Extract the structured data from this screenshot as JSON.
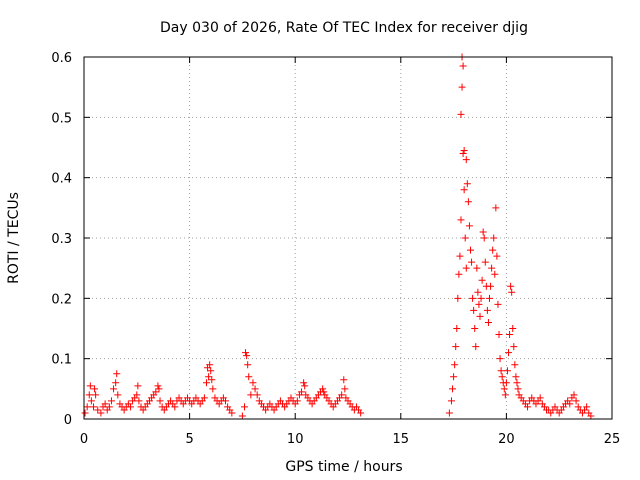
{
  "chart_data": {
    "type": "scatter",
    "title": "Day 030 of 2026, Rate Of TEC Index for receiver djig",
    "xlabel": "GPS time / hours",
    "ylabel": "ROTI / TECUs",
    "xlim": [
      0,
      25
    ],
    "ylim": [
      0,
      0.6
    ],
    "x_ticks": [
      0,
      5,
      10,
      15,
      20,
      25
    ],
    "x_tick_labels": [
      "0",
      "5",
      "10",
      "15",
      "20",
      "25"
    ],
    "y_ticks": [
      0,
      0.1,
      0.2,
      0.3,
      0.4,
      0.5,
      0.6
    ],
    "y_tick_labels": [
      "0",
      "0.1",
      "0.2",
      "0.3",
      "0.4",
      "0.5",
      "0.6"
    ],
    "grid": true,
    "marker": "plus",
    "series": [
      {
        "name": "ROTI",
        "color": "#ff0000",
        "points": [
          [
            0.05,
            0.01
          ],
          [
            0.15,
            0.02
          ],
          [
            0.25,
            0.04
          ],
          [
            0.3,
            0.055
          ],
          [
            0.35,
            0.03
          ],
          [
            0.45,
            0.02
          ],
          [
            0.5,
            0.05
          ],
          [
            0.55,
            0.04
          ],
          [
            0.65,
            0.015
          ],
          [
            0.8,
            0.01
          ],
          [
            0.9,
            0.02
          ],
          [
            1.0,
            0.025
          ],
          [
            1.1,
            0.015
          ],
          [
            1.2,
            0.02
          ],
          [
            1.3,
            0.03
          ],
          [
            1.4,
            0.05
          ],
          [
            1.5,
            0.06
          ],
          [
            1.55,
            0.075
          ],
          [
            1.6,
            0.04
          ],
          [
            1.7,
            0.025
          ],
          [
            1.8,
            0.02
          ],
          [
            1.9,
            0.015
          ],
          [
            2.0,
            0.02
          ],
          [
            2.1,
            0.025
          ],
          [
            2.2,
            0.02
          ],
          [
            2.3,
            0.03
          ],
          [
            2.4,
            0.035
          ],
          [
            2.5,
            0.04
          ],
          [
            2.55,
            0.055
          ],
          [
            2.6,
            0.03
          ],
          [
            2.7,
            0.02
          ],
          [
            2.8,
            0.015
          ],
          [
            2.9,
            0.02
          ],
          [
            3.0,
            0.025
          ],
          [
            3.1,
            0.03
          ],
          [
            3.2,
            0.035
          ],
          [
            3.3,
            0.04
          ],
          [
            3.4,
            0.045
          ],
          [
            3.5,
            0.055
          ],
          [
            3.55,
            0.05
          ],
          [
            3.6,
            0.03
          ],
          [
            3.7,
            0.02
          ],
          [
            3.8,
            0.015
          ],
          [
            3.9,
            0.02
          ],
          [
            4.0,
            0.025
          ],
          [
            4.1,
            0.03
          ],
          [
            4.2,
            0.025
          ],
          [
            4.3,
            0.02
          ],
          [
            4.4,
            0.03
          ],
          [
            4.5,
            0.035
          ],
          [
            4.6,
            0.03
          ],
          [
            4.7,
            0.025
          ],
          [
            4.8,
            0.03
          ],
          [
            4.9,
            0.035
          ],
          [
            5.0,
            0.03
          ],
          [
            5.1,
            0.025
          ],
          [
            5.2,
            0.03
          ],
          [
            5.3,
            0.035
          ],
          [
            5.4,
            0.03
          ],
          [
            5.5,
            0.025
          ],
          [
            5.6,
            0.03
          ],
          [
            5.7,
            0.035
          ],
          [
            5.8,
            0.06
          ],
          [
            5.85,
            0.085
          ],
          [
            5.9,
            0.07
          ],
          [
            5.95,
            0.09
          ],
          [
            6.0,
            0.08
          ],
          [
            6.05,
            0.065
          ],
          [
            6.1,
            0.05
          ],
          [
            6.2,
            0.035
          ],
          [
            6.3,
            0.03
          ],
          [
            6.4,
            0.025
          ],
          [
            6.5,
            0.03
          ],
          [
            6.6,
            0.035
          ],
          [
            6.7,
            0.03
          ],
          [
            6.8,
            0.02
          ],
          [
            6.9,
            0.015
          ],
          [
            7.0,
            0.01
          ],
          [
            7.5,
            0.005
          ],
          [
            7.6,
            0.02
          ],
          [
            7.65,
            0.11
          ],
          [
            7.7,
            0.105
          ],
          [
            7.75,
            0.09
          ],
          [
            7.8,
            0.07
          ],
          [
            7.9,
            0.04
          ],
          [
            8.0,
            0.06
          ],
          [
            8.1,
            0.05
          ],
          [
            8.2,
            0.04
          ],
          [
            8.3,
            0.03
          ],
          [
            8.4,
            0.025
          ],
          [
            8.5,
            0.02
          ],
          [
            8.6,
            0.015
          ],
          [
            8.7,
            0.02
          ],
          [
            8.8,
            0.025
          ],
          [
            8.9,
            0.02
          ],
          [
            9.0,
            0.015
          ],
          [
            9.1,
            0.02
          ],
          [
            9.2,
            0.025
          ],
          [
            9.3,
            0.03
          ],
          [
            9.4,
            0.025
          ],
          [
            9.5,
            0.02
          ],
          [
            9.6,
            0.025
          ],
          [
            9.7,
            0.03
          ],
          [
            9.8,
            0.035
          ],
          [
            9.9,
            0.03
          ],
          [
            10.0,
            0.025
          ],
          [
            10.1,
            0.03
          ],
          [
            10.2,
            0.04
          ],
          [
            10.3,
            0.045
          ],
          [
            10.4,
            0.06
          ],
          [
            10.45,
            0.055
          ],
          [
            10.5,
            0.04
          ],
          [
            10.6,
            0.035
          ],
          [
            10.7,
            0.03
          ],
          [
            10.8,
            0.025
          ],
          [
            10.9,
            0.03
          ],
          [
            11.0,
            0.035
          ],
          [
            11.1,
            0.04
          ],
          [
            11.2,
            0.045
          ],
          [
            11.3,
            0.05
          ],
          [
            11.35,
            0.045
          ],
          [
            11.4,
            0.04
          ],
          [
            11.5,
            0.035
          ],
          [
            11.6,
            0.03
          ],
          [
            11.7,
            0.025
          ],
          [
            11.8,
            0.02
          ],
          [
            11.9,
            0.025
          ],
          [
            12.0,
            0.03
          ],
          [
            12.1,
            0.035
          ],
          [
            12.2,
            0.04
          ],
          [
            12.3,
            0.065
          ],
          [
            12.35,
            0.05
          ],
          [
            12.4,
            0.035
          ],
          [
            12.5,
            0.03
          ],
          [
            12.6,
            0.025
          ],
          [
            12.7,
            0.02
          ],
          [
            12.8,
            0.015
          ],
          [
            12.9,
            0.02
          ],
          [
            13.0,
            0.015
          ],
          [
            13.1,
            0.01
          ],
          [
            17.3,
            0.01
          ],
          [
            17.4,
            0.03
          ],
          [
            17.45,
            0.05
          ],
          [
            17.5,
            0.07
          ],
          [
            17.55,
            0.09
          ],
          [
            17.6,
            0.12
          ],
          [
            17.65,
            0.15
          ],
          [
            17.7,
            0.2
          ],
          [
            17.75,
            0.24
          ],
          [
            17.8,
            0.27
          ],
          [
            17.85,
            0.33
          ],
          [
            17.85,
            0.505
          ],
          [
            17.9,
            0.55
          ],
          [
            17.9,
            0.6
          ],
          [
            17.95,
            0.585
          ],
          [
            17.95,
            0.44
          ],
          [
            18.0,
            0.445
          ],
          [
            18.0,
            0.38
          ],
          [
            18.05,
            0.3
          ],
          [
            18.1,
            0.25
          ],
          [
            18.1,
            0.43
          ],
          [
            18.15,
            0.39
          ],
          [
            18.2,
            0.36
          ],
          [
            18.25,
            0.32
          ],
          [
            18.3,
            0.28
          ],
          [
            18.35,
            0.26
          ],
          [
            18.4,
            0.2
          ],
          [
            18.45,
            0.18
          ],
          [
            18.5,
            0.15
          ],
          [
            18.55,
            0.12
          ],
          [
            18.6,
            0.25
          ],
          [
            18.65,
            0.21
          ],
          [
            18.7,
            0.19
          ],
          [
            18.75,
            0.17
          ],
          [
            18.8,
            0.2
          ],
          [
            18.85,
            0.23
          ],
          [
            18.9,
            0.31
          ],
          [
            18.95,
            0.3
          ],
          [
            19.0,
            0.26
          ],
          [
            19.05,
            0.22
          ],
          [
            19.1,
            0.18
          ],
          [
            19.15,
            0.16
          ],
          [
            19.2,
            0.2
          ],
          [
            19.25,
            0.22
          ],
          [
            19.3,
            0.25
          ],
          [
            19.35,
            0.28
          ],
          [
            19.4,
            0.3
          ],
          [
            19.45,
            0.24
          ],
          [
            19.5,
            0.35
          ],
          [
            19.55,
            0.27
          ],
          [
            19.6,
            0.19
          ],
          [
            19.65,
            0.14
          ],
          [
            19.7,
            0.1
          ],
          [
            19.75,
            0.08
          ],
          [
            19.8,
            0.07
          ],
          [
            19.85,
            0.06
          ],
          [
            19.9,
            0.05
          ],
          [
            19.95,
            0.04
          ],
          [
            20.0,
            0.06
          ],
          [
            20.05,
            0.08
          ],
          [
            20.1,
            0.11
          ],
          [
            20.15,
            0.14
          ],
          [
            20.2,
            0.22
          ],
          [
            20.25,
            0.21
          ],
          [
            20.3,
            0.15
          ],
          [
            20.35,
            0.12
          ],
          [
            20.4,
            0.09
          ],
          [
            20.45,
            0.07
          ],
          [
            20.5,
            0.06
          ],
          [
            20.55,
            0.05
          ],
          [
            20.6,
            0.04
          ],
          [
            20.7,
            0.035
          ],
          [
            20.8,
            0.03
          ],
          [
            20.9,
            0.025
          ],
          [
            21.0,
            0.02
          ],
          [
            21.1,
            0.03
          ],
          [
            21.2,
            0.035
          ],
          [
            21.3,
            0.03
          ],
          [
            21.4,
            0.025
          ],
          [
            21.5,
            0.03
          ],
          [
            21.6,
            0.035
          ],
          [
            21.7,
            0.025
          ],
          [
            21.8,
            0.02
          ],
          [
            21.9,
            0.015
          ],
          [
            22.0,
            0.015
          ],
          [
            22.1,
            0.01
          ],
          [
            22.2,
            0.015
          ],
          [
            22.3,
            0.02
          ],
          [
            22.4,
            0.015
          ],
          [
            22.5,
            0.01
          ],
          [
            22.6,
            0.015
          ],
          [
            22.7,
            0.02
          ],
          [
            22.8,
            0.025
          ],
          [
            22.9,
            0.03
          ],
          [
            23.0,
            0.025
          ],
          [
            23.1,
            0.035
          ],
          [
            23.2,
            0.04
          ],
          [
            23.3,
            0.03
          ],
          [
            23.4,
            0.02
          ],
          [
            23.5,
            0.015
          ],
          [
            23.6,
            0.01
          ],
          [
            23.7,
            0.015
          ],
          [
            23.8,
            0.02
          ],
          [
            23.9,
            0.01
          ],
          [
            24.0,
            0.005
          ]
        ]
      }
    ]
  }
}
